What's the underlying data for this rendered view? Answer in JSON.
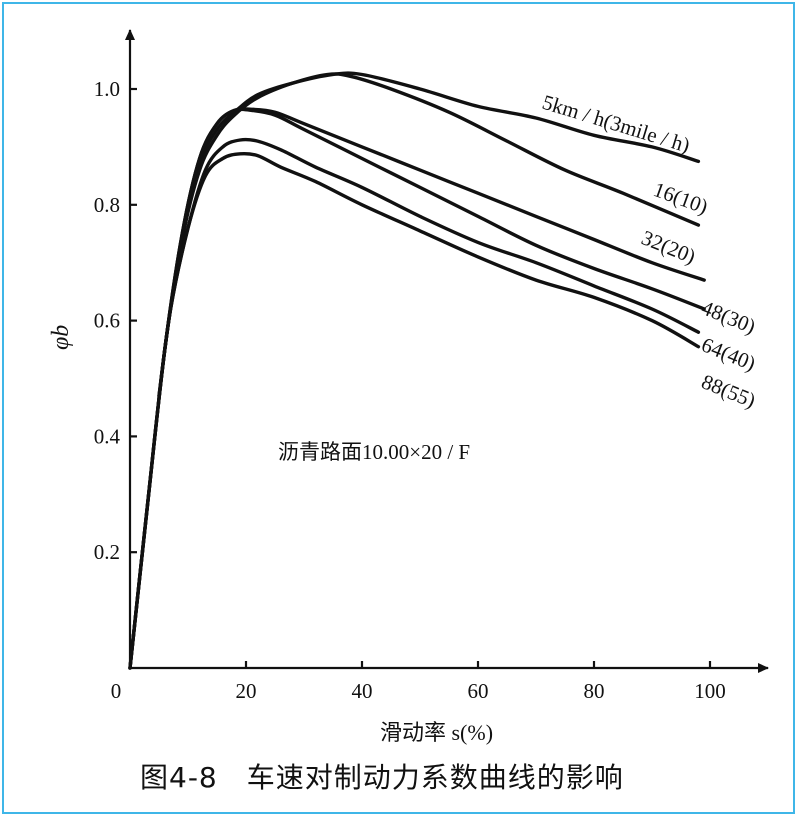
{
  "chart_data": {
    "type": "line",
    "xlabel": "滑动率 s(%)",
    "ylabel": "φb",
    "xlim": [
      0,
      110
    ],
    "ylim": [
      0,
      1.1
    ],
    "x_ticks": [
      0,
      20,
      40,
      60,
      80,
      100
    ],
    "y_ticks": [
      0.2,
      0.4,
      0.6,
      0.8,
      1.0
    ],
    "x_tick_labels": [
      "0",
      "20",
      "40",
      "60",
      "80",
      "100"
    ],
    "y_tick_labels": [
      "0.2",
      "0.4",
      "0.6",
      "0.8",
      "1.0"
    ],
    "annotation": "沥青路面10.00×20 / F",
    "series": [
      {
        "name": "5km / h(3mile / h)",
        "points": [
          [
            0,
            0
          ],
          [
            3,
            0.28
          ],
          [
            6,
            0.55
          ],
          [
            9,
            0.74
          ],
          [
            12,
            0.87
          ],
          [
            15,
            0.93
          ],
          [
            18,
            0.96
          ],
          [
            22,
            0.99
          ],
          [
            28,
            1.01
          ],
          [
            35,
            1.025
          ],
          [
            40,
            1.025
          ],
          [
            50,
            1.0
          ],
          [
            60,
            0.97
          ],
          [
            70,
            0.95
          ],
          [
            80,
            0.92
          ],
          [
            90,
            0.9
          ],
          [
            98,
            0.875
          ]
        ]
      },
      {
        "name": "16(10)",
        "points": [
          [
            0,
            0
          ],
          [
            3,
            0.28
          ],
          [
            6,
            0.55
          ],
          [
            9,
            0.74
          ],
          [
            12,
            0.86
          ],
          [
            15,
            0.92
          ],
          [
            18,
            0.955
          ],
          [
            22,
            0.985
          ],
          [
            28,
            1.01
          ],
          [
            34,
            1.025
          ],
          [
            38,
            1.022
          ],
          [
            45,
            1.0
          ],
          [
            55,
            0.96
          ],
          [
            65,
            0.91
          ],
          [
            75,
            0.86
          ],
          [
            85,
            0.82
          ],
          [
            98,
            0.765
          ]
        ]
      },
      {
        "name": "32(20)",
        "points": [
          [
            0,
            0
          ],
          [
            3,
            0.28
          ],
          [
            6,
            0.55
          ],
          [
            9,
            0.75
          ],
          [
            12,
            0.88
          ],
          [
            15,
            0.94
          ],
          [
            18,
            0.963
          ],
          [
            21,
            0.965
          ],
          [
            25,
            0.96
          ],
          [
            30,
            0.94
          ],
          [
            40,
            0.9
          ],
          [
            50,
            0.86
          ],
          [
            60,
            0.82
          ],
          [
            70,
            0.78
          ],
          [
            80,
            0.74
          ],
          [
            90,
            0.7
          ],
          [
            99,
            0.67
          ]
        ]
      },
      {
        "name": "48(30)",
        "points": [
          [
            0,
            0
          ],
          [
            3,
            0.28
          ],
          [
            6,
            0.55
          ],
          [
            9,
            0.75
          ],
          [
            12,
            0.88
          ],
          [
            15,
            0.94
          ],
          [
            18,
            0.963
          ],
          [
            21,
            0.963
          ],
          [
            25,
            0.955
          ],
          [
            30,
            0.93
          ],
          [
            40,
            0.88
          ],
          [
            50,
            0.83
          ],
          [
            60,
            0.78
          ],
          [
            70,
            0.73
          ],
          [
            80,
            0.69
          ],
          [
            90,
            0.655
          ],
          [
            99,
            0.62
          ]
        ]
      },
      {
        "name": "64(40)",
        "points": [
          [
            5,
            0.47
          ],
          [
            7,
            0.62
          ],
          [
            10,
            0.76
          ],
          [
            13,
            0.86
          ],
          [
            16,
            0.9
          ],
          [
            19,
            0.912
          ],
          [
            22,
            0.91
          ],
          [
            26,
            0.895
          ],
          [
            32,
            0.865
          ],
          [
            40,
            0.83
          ],
          [
            50,
            0.78
          ],
          [
            60,
            0.735
          ],
          [
            70,
            0.7
          ],
          [
            80,
            0.66
          ],
          [
            90,
            0.62
          ],
          [
            98,
            0.58
          ]
        ]
      },
      {
        "name": "88(55)",
        "points": [
          [
            5,
            0.47
          ],
          [
            7,
            0.62
          ],
          [
            10,
            0.76
          ],
          [
            13,
            0.85
          ],
          [
            16,
            0.88
          ],
          [
            19,
            0.888
          ],
          [
            22,
            0.885
          ],
          [
            26,
            0.865
          ],
          [
            32,
            0.84
          ],
          [
            40,
            0.8
          ],
          [
            50,
            0.755
          ],
          [
            60,
            0.71
          ],
          [
            70,
            0.67
          ],
          [
            80,
            0.64
          ],
          [
            90,
            0.6
          ],
          [
            98,
            0.555
          ]
        ]
      }
    ]
  },
  "caption": "图4-8　车速对制动力系数曲线的影响"
}
